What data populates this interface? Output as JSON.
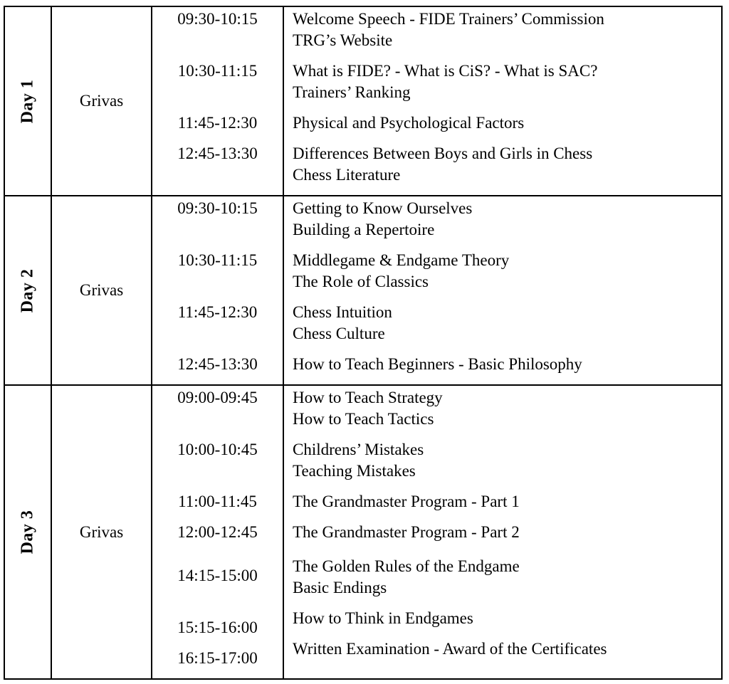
{
  "days": [
    {
      "label": "Day 1",
      "instructor": "Grivas",
      "sessions": [
        {
          "time": "09:30-10:15",
          "topics": [
            "Welcome Speech - FIDE Trainers’ Commission",
            "TRG’s Website"
          ]
        },
        {
          "time": "10:30-11:15",
          "topics": [
            "What is FIDE? - What is CiS? - What is SAC?",
            "Trainers’ Ranking"
          ]
        },
        {
          "time": "11:45-12:30",
          "topics": [
            "Physical and Psychological Factors"
          ]
        },
        {
          "time": "12:45-13:30",
          "topics": [
            "Differences Between Boys and Girls in Chess",
            "Chess Literature"
          ]
        }
      ]
    },
    {
      "label": "Day 2",
      "instructor": "Grivas",
      "sessions": [
        {
          "time": "09:30-10:15",
          "topics": [
            "Getting to Know Ourselves",
            "Building a Repertoire"
          ]
        },
        {
          "time": "10:30-11:15",
          "topics": [
            "Middlegame & Endgame Theory",
            "The Role of Classics"
          ]
        },
        {
          "time": "11:45-12:30",
          "topics": [
            "Chess Intuition",
            "Chess Culture"
          ]
        },
        {
          "time": "12:45-13:30",
          "topics": [
            "How to Teach Beginners - Basic Philosophy"
          ]
        }
      ]
    },
    {
      "label": "Day 3",
      "instructor": "Grivas",
      "sessions": [
        {
          "time": "09:00-09:45",
          "topics": [
            "How to Teach Strategy",
            "How to Teach Tactics"
          ]
        },
        {
          "time": "10:00-10:45",
          "topics": [
            "Childrens’ Mistakes",
            "Teaching Mistakes"
          ]
        },
        {
          "time": "11:00-11:45",
          "topics": [
            "The Grandmaster Program - Part 1"
          ]
        },
        {
          "time": "12:00-12:45",
          "topics": [
            "The Grandmaster Program - Part 2"
          ]
        },
        {
          "time": "14:15-15:00",
          "topics": [
            "The Golden Rules of the Endgame",
            "Basic Endings"
          ]
        },
        {
          "time": "15:15-16:00",
          "topics": [
            "How to Think in Endgames"
          ]
        },
        {
          "time": "16:15-17:00",
          "topics": [
            "Written Examination - Award of the Certificates"
          ]
        }
      ]
    }
  ]
}
